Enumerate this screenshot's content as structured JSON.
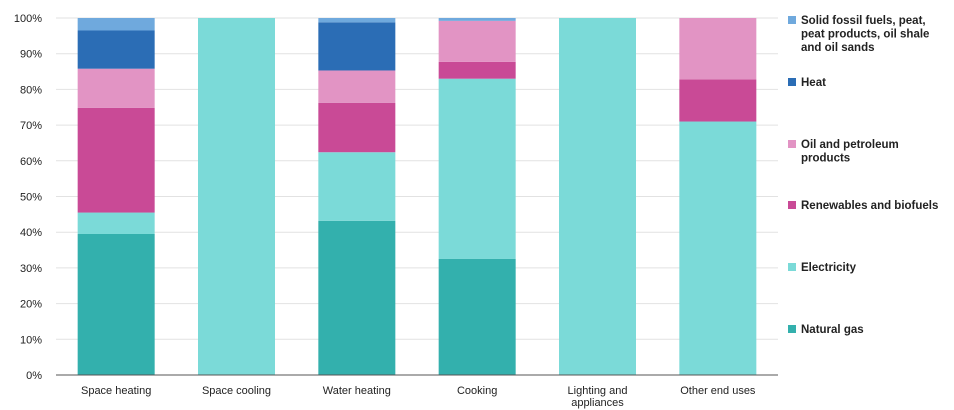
{
  "chart_data": {
    "type": "bar",
    "stacked": true,
    "categories": [
      [
        "Space heating"
      ],
      [
        "Space cooling"
      ],
      [
        "Water heating"
      ],
      [
        "Cooking"
      ],
      [
        "Lighting and",
        "appliances"
      ],
      [
        "Other end uses"
      ]
    ],
    "y_ticks": [
      "0%",
      "10%",
      "20%",
      "30%",
      "40%",
      "50%",
      "60%",
      "70%",
      "80%",
      "90%",
      "100%"
    ],
    "ylim": [
      0,
      100
    ],
    "grid": true,
    "legend_position": "right",
    "series": [
      {
        "name": [
          "Natural gas"
        ],
        "color": "#33b0ad",
        "values": [
          39.5,
          0,
          43.2,
          32.5,
          0,
          0
        ]
      },
      {
        "name": [
          "Electricity"
        ],
        "color": "#7bdad8",
        "values": [
          6,
          100,
          19.2,
          50.5,
          100,
          71
        ]
      },
      {
        "name": [
          "Renewables and biofuels"
        ],
        "color": "#c94a96",
        "values": [
          29.3,
          0,
          13.8,
          4.7,
          0,
          11.8
        ]
      },
      {
        "name": [
          "Oil and petroleum",
          "products"
        ],
        "color": "#e294c4",
        "values": [
          11,
          0,
          9.1,
          11.5,
          0,
          17.2
        ]
      },
      {
        "name": [
          "Heat"
        ],
        "color": "#2b6db5",
        "values": [
          10.7,
          0,
          13.5,
          0,
          0,
          0
        ]
      },
      {
        "name": [
          "Solid fossil fuels, peat,",
          "peat products, oil shale",
          "and oil sands"
        ],
        "color": "#6fa9dd",
        "values": [
          3.5,
          0,
          1.2,
          0.8,
          0,
          0
        ]
      }
    ]
  }
}
